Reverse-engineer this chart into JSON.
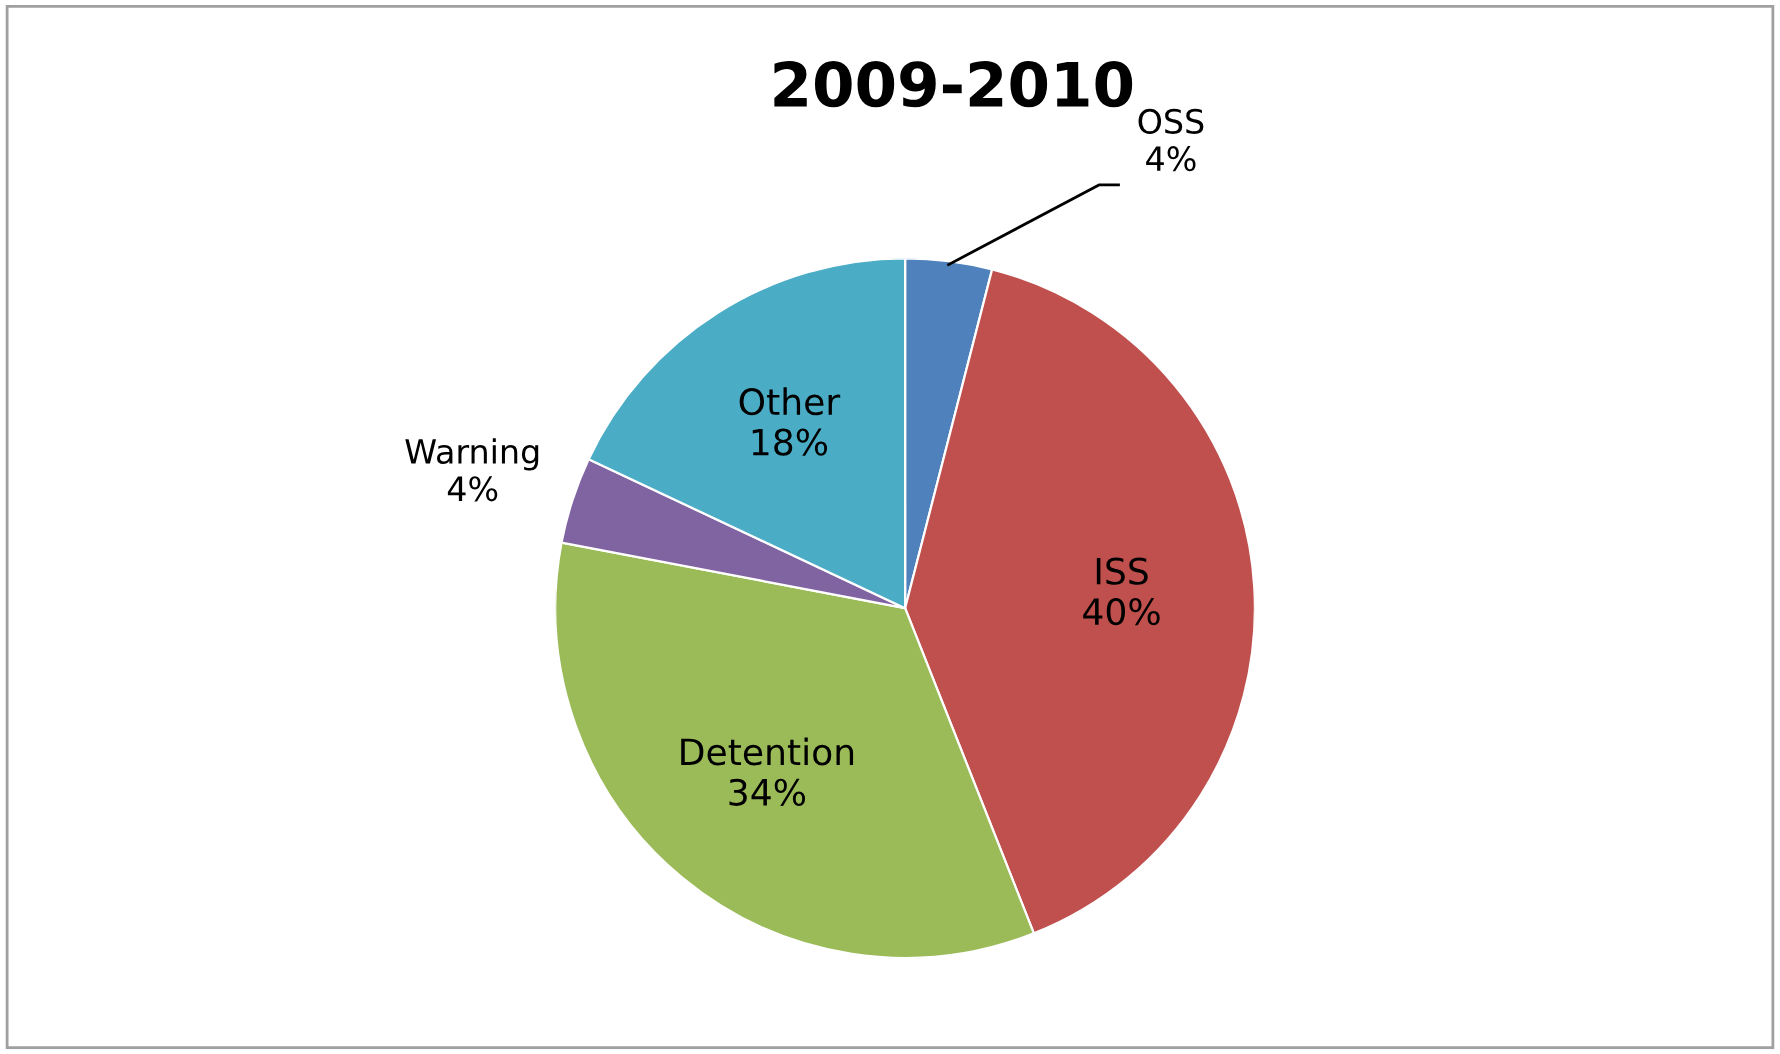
{
  "chart_data": {
    "type": "pie",
    "title": "2009-2010",
    "categories": [
      "OSS",
      "ISS",
      "Detention",
      "Warning",
      "Other"
    ],
    "values": [
      4,
      40,
      34,
      4,
      18
    ],
    "value_labels": [
      "4%",
      "40%",
      "34%",
      "4%",
      "18%"
    ],
    "colors": [
      "#4f81bd",
      "#c0504d",
      "#9bbb59",
      "#8064a2",
      "#4bacc6"
    ],
    "legend": false
  }
}
